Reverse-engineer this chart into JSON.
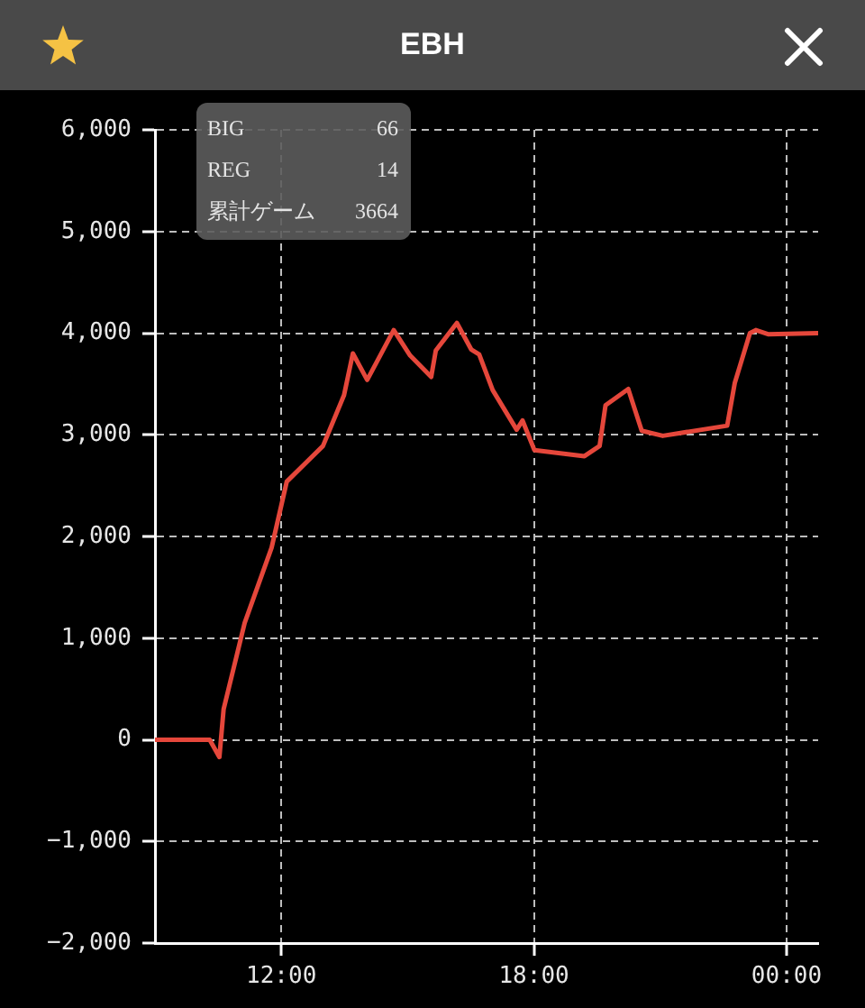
{
  "chart_data": {
    "type": "line",
    "title": "EBH",
    "x": [
      9,
      10.3,
      10.53,
      10.63,
      11.13,
      11.77,
      12.13,
      12.99,
      13.49,
      13.7,
      14.04,
      14.67,
      15.06,
      15.56,
      15.67,
      16.17,
      16.51,
      16.7,
      17.02,
      17.59,
      17.73,
      18.01,
      19.2,
      19.56,
      19.7,
      20.24,
      20.56,
      21.06,
      22.59,
      22.77,
      23.13,
      23.27,
      23.56,
      24.75
    ],
    "series": [
      {
        "color": "#e5473b",
        "values": [
          0,
          0,
          -170,
          300,
          1150,
          1890,
          2540,
          2890,
          3390,
          3800,
          3540,
          4030,
          3780,
          3570,
          3830,
          4100,
          3840,
          3790,
          3440,
          3050,
          3140,
          2850,
          2790,
          2890,
          3290,
          3450,
          3040,
          2990,
          3090,
          3510,
          4000,
          4030,
          3990,
          4000
        ]
      }
    ],
    "xlim": [
      9,
      24.75
    ],
    "xticks": [
      {
        "value": 12,
        "label": "12:00"
      },
      {
        "value": 18,
        "label": "18:00"
      },
      {
        "value": 24,
        "label": "00:00"
      }
    ],
    "ylim": [
      -2000,
      6000
    ],
    "yticks": [
      {
        "value": -2000,
        "label": "−2,000"
      },
      {
        "value": -1000,
        "label": "−1,000"
      },
      {
        "value": 0,
        "label": "0"
      },
      {
        "value": 1000,
        "label": "1,000"
      },
      {
        "value": 2000,
        "label": "2,000"
      },
      {
        "value": 3000,
        "label": "3,000"
      },
      {
        "value": 4000,
        "label": "4,000"
      },
      {
        "value": 5000,
        "label": "5,000"
      },
      {
        "value": 6000,
        "label": "6,000"
      }
    ],
    "grid": true,
    "marker": "none",
    "line_style": "solid",
    "annotations": [
      "BIG",
      "66",
      "REG",
      "14",
      "累計ゲーム",
      "3664"
    ]
  }
}
